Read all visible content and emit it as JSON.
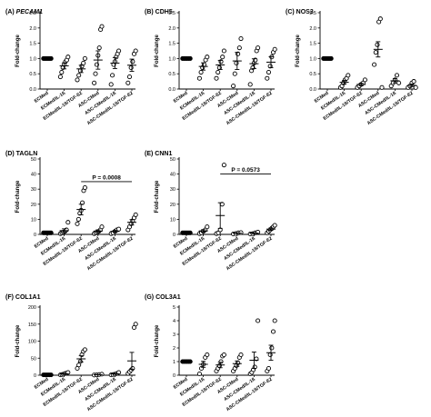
{
  "figure": {
    "categories": [
      "ECMed",
      "ECMed/IL-1ß",
      "ECMed/IL-1ß/TGF-ß2",
      "ASC-CMed",
      "ASC-CMed/IL-1ß",
      "ASC-CMed/IL-1ß/TGF-ß2"
    ]
  },
  "chart_data": [
    {
      "type": "scatter",
      "panel": "A",
      "prefix": "(A) ",
      "title": "PECAM1",
      "title_italic": true,
      "ylabel": "Fold-change",
      "ylim": [
        0,
        2.5
      ],
      "yticks": [
        0.0,
        0.5,
        1.0,
        1.5,
        2.0,
        2.5
      ],
      "ytick_labels": [
        "0.0",
        "0.5",
        "1.0",
        "1.5",
        "2.0",
        "2.5"
      ],
      "categories": [
        "ECMed",
        "ECMed/IL-1ß",
        "ECMed/IL-1ß/TGF-ß2",
        "ASC-CMed",
        "ASC-CMed/IL-1ß",
        "ASC-CMed/IL-1ß/TGF-ß2"
      ],
      "points": [
        [
          1,
          1,
          1,
          1,
          1,
          1,
          1
        ],
        [
          0.4,
          0.55,
          0.7,
          0.8,
          0.9,
          0.95,
          1.05
        ],
        [
          0.3,
          0.45,
          0.6,
          0.75,
          0.85,
          1.0
        ],
        [
          0.2,
          0.5,
          0.8,
          1.1,
          1.35,
          1.95,
          2.05
        ],
        [
          0.15,
          0.45,
          0.8,
          0.9,
          1.05,
          1.15,
          1.25
        ],
        [
          0.2,
          0.4,
          0.7,
          0.9,
          1.15,
          1.25
        ]
      ],
      "means": [
        1.0,
        0.76,
        0.66,
        0.95,
        0.85,
        0.78
      ],
      "sem": [
        0.0,
        0.1,
        0.12,
        0.3,
        0.18,
        0.2
      ]
    },
    {
      "type": "scatter",
      "panel": "B",
      "prefix": "(B) ",
      "title": "CDH5",
      "title_italic": false,
      "ylabel": "Fold-change",
      "ylim": [
        0,
        2.5
      ],
      "yticks": [
        0.0,
        0.5,
        1.0,
        1.5,
        2.0,
        2.5
      ],
      "ytick_labels": [
        "0.0",
        "0.5",
        "1.0",
        "1.5",
        "2.0",
        "2.5"
      ],
      "categories": [
        "ECMed",
        "ECMed/IL-1ß",
        "ECMed/IL-1ß/TGF-ß2",
        "ASC-CMed",
        "ASC-CMed/IL-1ß",
        "ASC-CMed/IL-1ß/TGF-ß2"
      ],
      "points": [
        [
          1,
          1,
          1,
          1,
          1,
          1
        ],
        [
          0.35,
          0.55,
          0.7,
          0.8,
          0.95,
          1.05
        ],
        [
          0.35,
          0.55,
          0.7,
          0.9,
          1.05,
          1.25
        ],
        [
          0.1,
          0.5,
          0.85,
          1.15,
          1.35,
          1.65
        ],
        [
          0.15,
          0.6,
          0.7,
          0.85,
          0.95,
          1.25,
          1.35
        ],
        [
          0.35,
          0.55,
          0.75,
          1.05,
          1.2,
          1.3
        ]
      ],
      "means": [
        1.0,
        0.74,
        0.79,
        0.92,
        0.83,
        0.88
      ],
      "sem": [
        0.0,
        0.12,
        0.15,
        0.28,
        0.16,
        0.18
      ]
    },
    {
      "type": "scatter",
      "panel": "C",
      "prefix": "(C) ",
      "title": "NOS3",
      "title_italic": false,
      "ylabel": "Fold-change",
      "ylim": [
        0,
        2.5
      ],
      "yticks": [
        0.0,
        0.5,
        1.0,
        1.5,
        2.0,
        2.5
      ],
      "ytick_labels": [
        "0.0",
        "0.5",
        "1.0",
        "1.5",
        "2.0",
        "2.5"
      ],
      "categories": [
        "ECMed",
        "ECMed/IL-1ß",
        "ECMed/IL-1ß/TGF-ß2",
        "ASC-CMed",
        "ASC-CMed/IL-1ß",
        "ASC-CMed/IL-1ß/TGF-ß2"
      ],
      "points": [
        [
          1,
          1,
          1,
          1,
          1,
          1,
          1
        ],
        [
          0.05,
          0.1,
          0.2,
          0.3,
          0.35,
          0.45
        ],
        [
          0.05,
          0.1,
          0.15,
          0.2,
          0.3
        ],
        [
          0.8,
          1.2,
          1.45,
          2.2,
          2.3,
          0.05
        ],
        [
          0.1,
          0.2,
          0.3,
          0.45,
          0.2
        ],
        [
          0.05,
          0.1,
          0.2,
          0.25,
          0.05
        ]
      ],
      "means": [
        1.0,
        0.22,
        0.15,
        1.3,
        0.27,
        0.12
      ],
      "sem": [
        0.0,
        0.06,
        0.04,
        0.25,
        0.07,
        0.04
      ]
    },
    {
      "type": "scatter",
      "panel": "D",
      "prefix": "(D) ",
      "title": "TAGLN",
      "title_italic": false,
      "ylabel": "Fold-change",
      "ylim": [
        0,
        50
      ],
      "yticks": [
        0,
        10,
        20,
        30,
        40,
        50
      ],
      "ytick_labels": [
        "0",
        "10",
        "20",
        "30",
        "40",
        "50"
      ],
      "categories": [
        "ECMed",
        "ECMed/IL-1ß",
        "ECMed/IL-1ß/TGF-ß2",
        "ASC-CMed",
        "ASC-CMed/IL-1ß",
        "ASC-CMed/IL-1ß/TGF-ß2"
      ],
      "points": [
        [
          1,
          1,
          1,
          1,
          1,
          1
        ],
        [
          0.5,
          1,
          1.5,
          2,
          3,
          8
        ],
        [
          7,
          10,
          14,
          16,
          21,
          29,
          31
        ],
        [
          0.5,
          1,
          1.5,
          2,
          3,
          5
        ],
        [
          0.5,
          1,
          2,
          3,
          3.5
        ],
        [
          3,
          5,
          7,
          9,
          11,
          13
        ]
      ],
      "means": [
        1.0,
        2.5,
        16.5,
        2.2,
        2.0,
        8.0
      ],
      "sem": [
        0.0,
        1.2,
        3.5,
        0.8,
        0.6,
        1.8
      ],
      "annotation": {
        "text": "P = 0.0008",
        "from": 2,
        "to": 5,
        "y": 35
      }
    },
    {
      "type": "scatter",
      "panel": "E",
      "prefix": "(E) ",
      "title": "CNN1",
      "title_italic": false,
      "ylabel": "Fold-change",
      "ylim": [
        0,
        50
      ],
      "yticks": [
        0,
        10,
        20,
        30,
        40,
        50
      ],
      "ytick_labels": [
        "0",
        "10",
        "20",
        "30",
        "40",
        "50"
      ],
      "categories": [
        "ECMed",
        "ECMed/IL-1ß",
        "ECMed/IL-1ß/TGF-ß2",
        "ASC-CMed",
        "ASC-CMed/IL-1ß",
        "ASC-CMed/IL-1ß/TGF-ß2"
      ],
      "points": [
        [
          1,
          1,
          1,
          1,
          1,
          1
        ],
        [
          0.5,
          1,
          2,
          3,
          5
        ],
        [
          0.5,
          1,
          3,
          20,
          46
        ],
        [
          0.3,
          0.6,
          1,
          1.2
        ],
        [
          0.3,
          0.5,
          1,
          1.5
        ],
        [
          1,
          2,
          3,
          4,
          5,
          6
        ]
      ],
      "means": [
        1.0,
        2.3,
        12.5,
        0.8,
        0.8,
        3.5
      ],
      "sem": [
        0.0,
        0.8,
        8.5,
        0.2,
        0.3,
        0.8
      ],
      "annotation": {
        "text": "P = 0.0573",
        "from": 2,
        "to": 5,
        "y": 40
      }
    },
    {
      "type": "scatter",
      "panel": "F",
      "prefix": "(F) ",
      "title": "COL1A1",
      "title_italic": false,
      "ylabel": "Fold-change",
      "ylim": [
        0,
        200
      ],
      "yticks": [
        0,
        50,
        100,
        150,
        200
      ],
      "ytick_labels": [
        "0",
        "50",
        "100",
        "150",
        "200"
      ],
      "categories": [
        "ECMed",
        "ECMed/IL-1ß",
        "ECMed/IL-1ß/TGF-ß2",
        "ASC-CMed",
        "ASC-CMed/IL-1ß",
        "ASC-CMed/IL-1ß/TGF-ß2"
      ],
      "points": [
        [
          1,
          1,
          1,
          1,
          1,
          1
        ],
        [
          1,
          2,
          3,
          5,
          6,
          8
        ],
        [
          20,
          30,
          40,
          60,
          70,
          75
        ],
        [
          0.5,
          1,
          2,
          3
        ],
        [
          1,
          2,
          3,
          5,
          8
        ],
        [
          5,
          10,
          15,
          20,
          140,
          150
        ]
      ],
      "means": [
        1.0,
        4.0,
        48.0,
        1.5,
        4.0,
        42.0
      ],
      "sem": [
        0.0,
        1.0,
        9.0,
        0.5,
        1.2,
        25.0
      ]
    },
    {
      "type": "scatter",
      "panel": "G",
      "prefix": "(G) ",
      "title": "COL3A1",
      "title_italic": false,
      "ylabel": "Fold-change",
      "ylim": [
        0,
        5
      ],
      "yticks": [
        0,
        1,
        2,
        3,
        4,
        5
      ],
      "ytick_labels": [
        "0",
        "1",
        "2",
        "3",
        "4",
        "5"
      ],
      "categories": [
        "ECMed",
        "ECMed/IL-1ß",
        "ECMed/IL-1ß/TGF-ß2",
        "ASC-CMed",
        "ASC-CMed/IL-1ß",
        "ASC-CMed/IL-1ß/TGF-ß2"
      ],
      "points": [
        [
          1,
          1,
          1,
          1,
          1,
          1
        ],
        [
          0.1,
          0.5,
          0.8,
          1.3,
          1.5
        ],
        [
          0.3,
          0.5,
          0.7,
          1.0,
          1.4,
          1.5
        ],
        [
          0.3,
          0.5,
          0.7,
          0.9,
          1.3,
          1.5
        ],
        [
          0.1,
          0.2,
          0.4,
          0.6,
          1.2,
          4.0
        ],
        [
          0.3,
          0.5,
          1.5,
          2.0,
          3.2,
          4.0
        ]
      ],
      "means": [
        1.0,
        0.8,
        0.75,
        0.85,
        1.1,
        1.65
      ],
      "sem": [
        0.0,
        0.22,
        0.2,
        0.2,
        0.6,
        0.55
      ]
    }
  ]
}
